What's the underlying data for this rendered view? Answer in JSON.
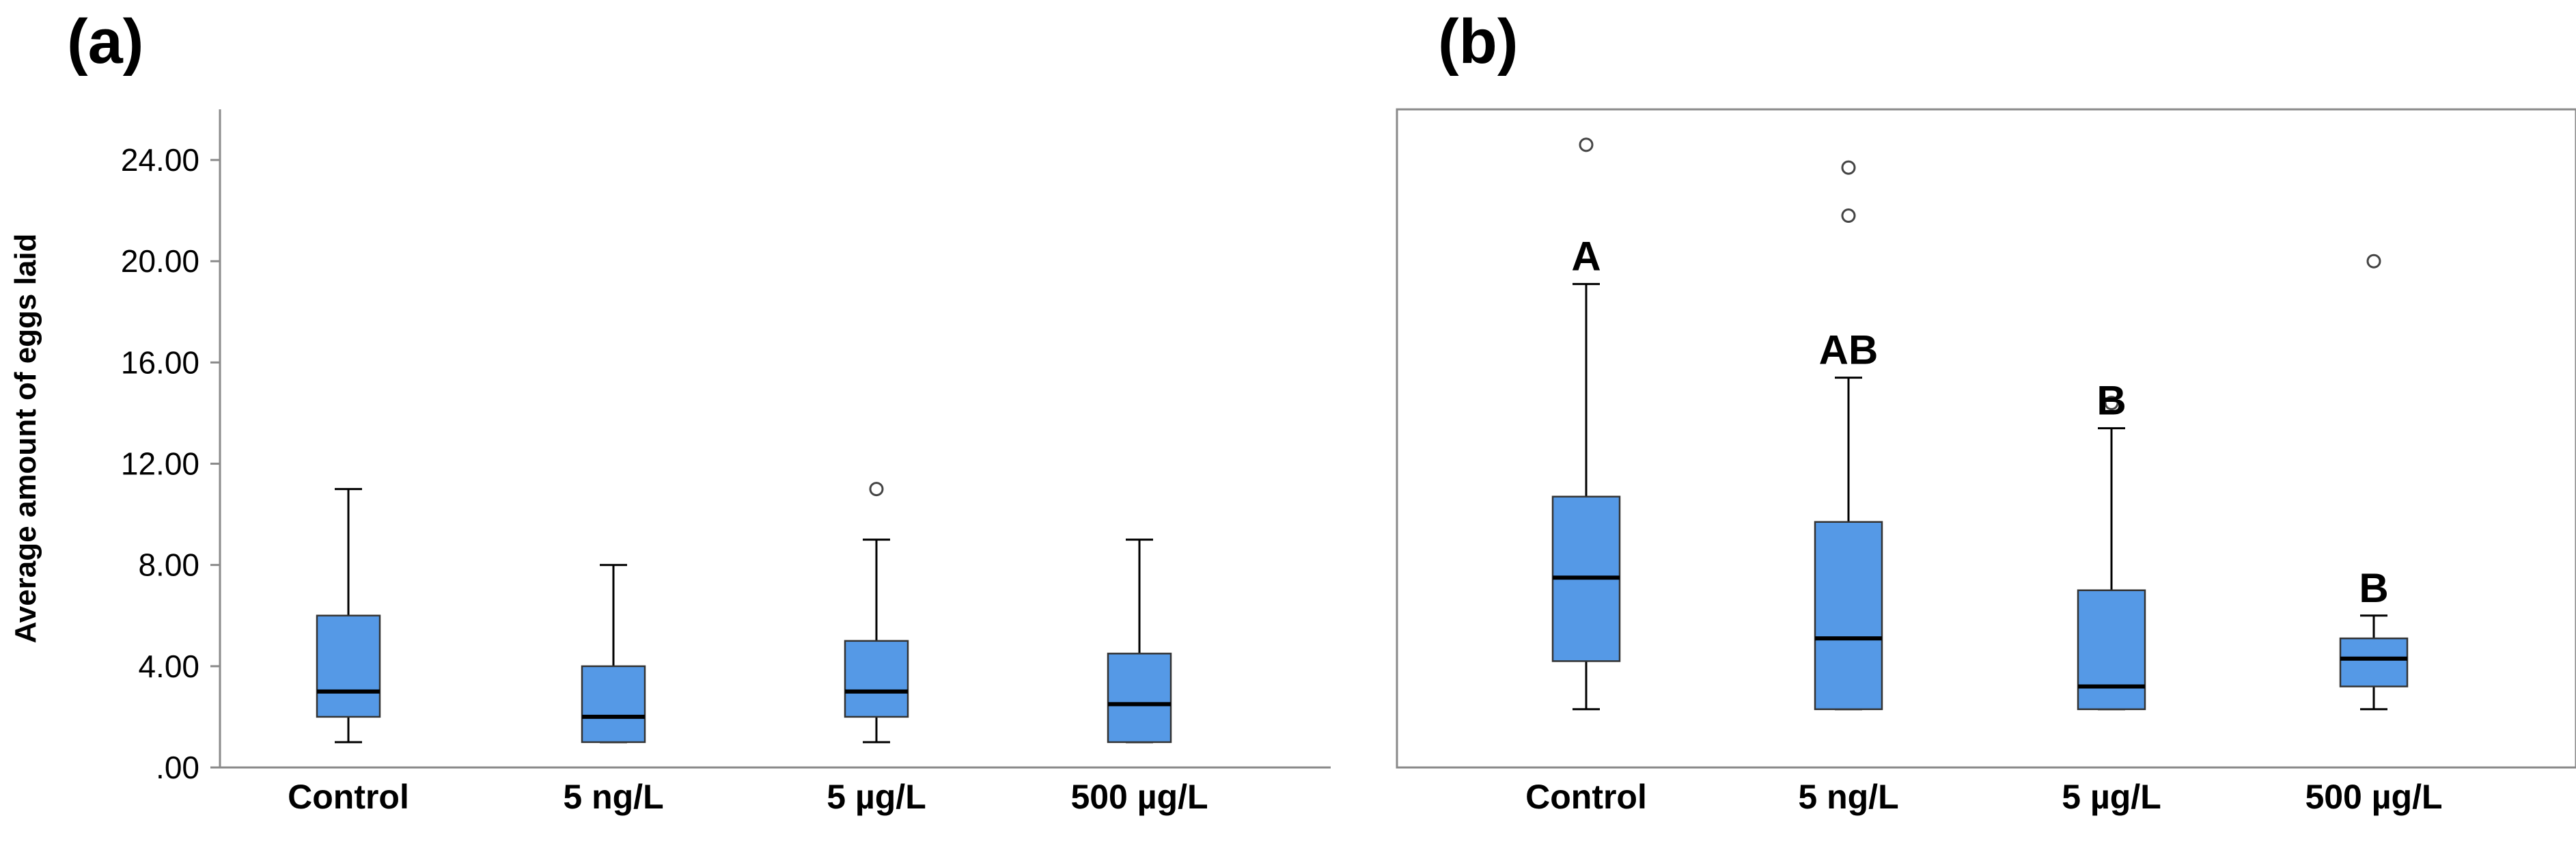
{
  "chart_data": [
    {
      "panel": "(a)",
      "type": "boxplot",
      "ylabel": "Average amount of eggs laid",
      "ylim": [
        0,
        26
      ],
      "yticks": [
        ".00",
        "4.00",
        "8.00",
        "12.00",
        "16.00",
        "20.00",
        "24.00"
      ],
      "yticks_values": [
        0,
        4,
        8,
        12,
        16,
        20,
        24
      ],
      "show_y_axis": true,
      "box_frame": false,
      "categories": [
        "Control",
        "5 ng/L",
        "5 µg/L",
        "500 µg/L"
      ],
      "boxes": [
        {
          "category": "Control",
          "min": 1.0,
          "q1": 2.0,
          "median": 3.0,
          "q3": 6.0,
          "max": 11.0,
          "outliers": [],
          "letter": ""
        },
        {
          "category": "5 ng/L",
          "min": 1.0,
          "q1": 1.0,
          "median": 2.0,
          "q3": 4.0,
          "max": 8.0,
          "outliers": [],
          "letter": ""
        },
        {
          "category": "5 µg/L",
          "min": 1.0,
          "q1": 2.0,
          "median": 3.0,
          "q3": 5.0,
          "max": 9.0,
          "outliers": [
            11.0
          ],
          "letter": ""
        },
        {
          "category": "500 µg/L",
          "min": 1.0,
          "q1": 1.0,
          "median": 2.5,
          "q3": 4.5,
          "max": 9.0,
          "outliers": [],
          "letter": ""
        }
      ]
    },
    {
      "panel": "(b)",
      "type": "boxplot",
      "ylabel": "",
      "ylim": [
        0,
        26
      ],
      "yticks": [],
      "yticks_values": [],
      "show_y_axis": false,
      "box_frame": true,
      "categories": [
        "Control",
        "5 ng/L",
        "5 µg/L",
        "500 µg/L"
      ],
      "boxes": [
        {
          "category": "Control",
          "min": 2.3,
          "q1": 4.2,
          "median": 7.5,
          "q3": 10.7,
          "max": 19.1,
          "outliers": [
            24.6
          ],
          "letter": "A"
        },
        {
          "category": "5 ng/L",
          "min": 2.3,
          "q1": 2.3,
          "median": 5.1,
          "q3": 9.7,
          "max": 15.4,
          "outliers": [
            21.8,
            23.7
          ],
          "letter": "AB"
        },
        {
          "category": "5 µg/L",
          "min": 2.3,
          "q1": 2.3,
          "median": 3.2,
          "q3": 7.0,
          "max": 13.4,
          "outliers": [
            14.4
          ],
          "letter": "B"
        },
        {
          "category": "500 µg/L",
          "min": 2.3,
          "q1": 3.2,
          "median": 4.3,
          "q3": 5.1,
          "max": 6.0,
          "outliers": [
            20.0
          ],
          "letter": "B"
        }
      ]
    }
  ],
  "colors": {
    "box_fill": "#5599e6",
    "axis": "#8a8a8a",
    "median": "#000000"
  }
}
